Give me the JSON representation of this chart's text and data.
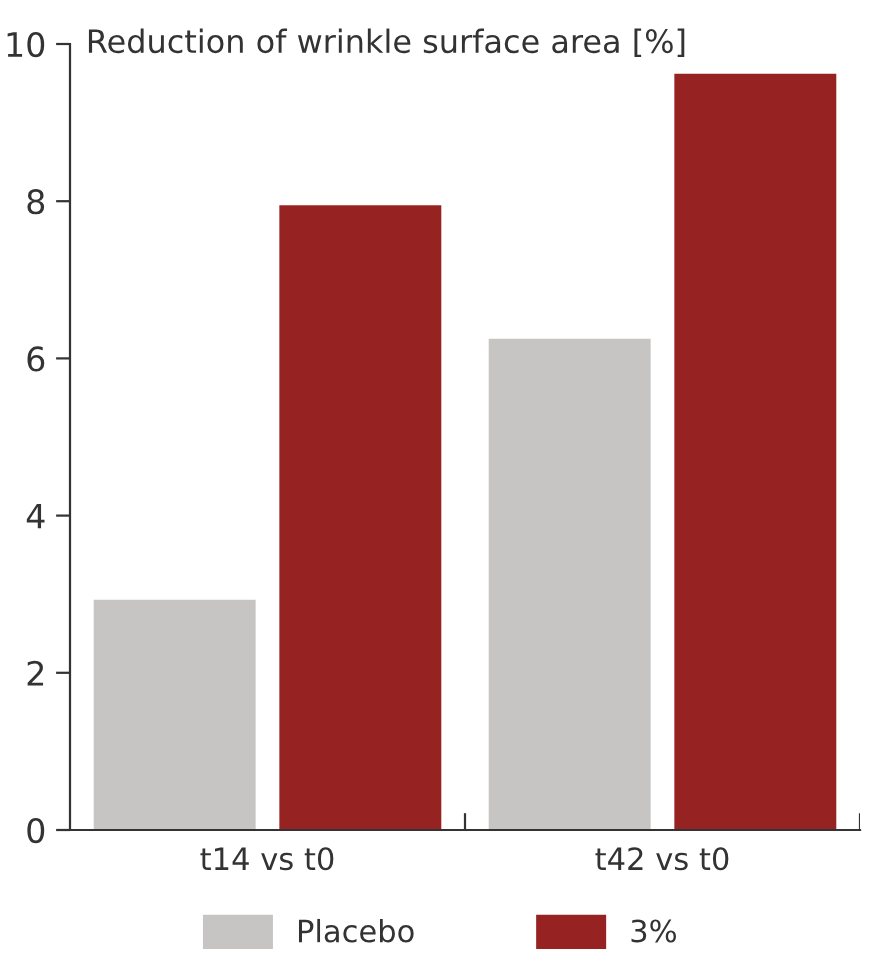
{
  "chart_data": {
    "type": "bar",
    "ylabel": "Reduction of wrinkle surface area [%]",
    "categories": [
      "t14 vs t0",
      "t42 vs t0"
    ],
    "series": [
      {
        "name": "Placebo",
        "color": "#c6c5c4",
        "values": [
          2.93,
          6.25
        ]
      },
      {
        "name": "3%",
        "color": "#962322",
        "values": [
          7.95,
          9.62
        ]
      }
    ],
    "ylim": [
      0,
      10
    ],
    "yticks": [
      0,
      2,
      4,
      6,
      8,
      10
    ],
    "grid": false,
    "legend": "bottom"
  }
}
